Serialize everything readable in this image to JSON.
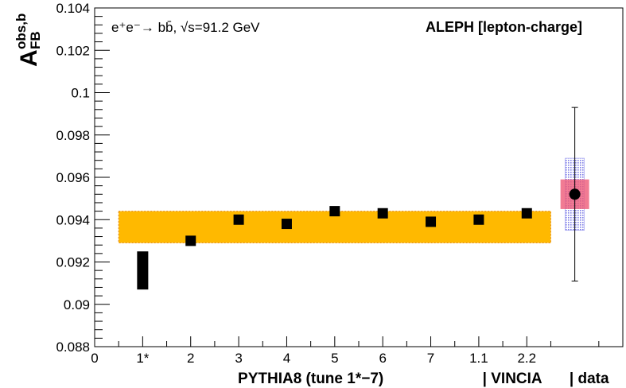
{
  "chart_data": {
    "type": "scatter",
    "title": "",
    "process_label": "e⁺e⁻→ bb̄, √s=91.2 GeV",
    "experiment_label": "ALEPH [lepton-charge]",
    "ylabel": "A",
    "ylabel_sup": "obs,b",
    "ylabel_sub": "FB",
    "ylim": [
      0.088,
      0.104
    ],
    "xlim": [
      0,
      11
    ],
    "yticks": [
      "0.088",
      "0.09",
      "0.092",
      "0.094",
      "0.096",
      "0.098",
      "0.1",
      "0.102",
      "0.104"
    ],
    "ytick_values": [
      0.088,
      0.09,
      0.092,
      0.094,
      0.096,
      0.098,
      0.1,
      0.102,
      0.104
    ],
    "xticks": [
      {
        "x": 0,
        "label": "0"
      },
      {
        "x": 1,
        "label": "1*"
      },
      {
        "x": 2,
        "label": "2"
      },
      {
        "x": 3,
        "label": "3"
      },
      {
        "x": 4,
        "label": "4"
      },
      {
        "x": 5,
        "label": "5"
      },
      {
        "x": 6,
        "label": "6"
      },
      {
        "x": 7,
        "label": "7"
      },
      {
        "x": 8,
        "label": "1.1"
      },
      {
        "x": 9,
        "label": "2.2"
      }
    ],
    "xlabel_groups": [
      {
        "label": "PYTHIA8 (tune 1*−7)",
        "x": 4.5
      },
      {
        "label": "| VINCIA",
        "x": 8.7
      },
      {
        "label": "| data",
        "x": 10.3
      }
    ],
    "band": {
      "x_from": 0.5,
      "x_to": 9.5,
      "y_low": 0.0929,
      "y_high": 0.0944,
      "color": "#ffb900"
    },
    "series": [
      {
        "points": [
          {
            "x": 1,
            "y_low": 0.0907,
            "y_high": 0.0925
          },
          {
            "x": 2,
            "y": 0.093
          },
          {
            "x": 3,
            "y": 0.094
          },
          {
            "x": 4,
            "y": 0.0938
          },
          {
            "x": 5,
            "y": 0.0944
          },
          {
            "x": 6,
            "y": 0.0943
          },
          {
            "x": 7,
            "y": 0.0939
          },
          {
            "x": 8,
            "y": 0.094
          },
          {
            "x": 9,
            "y": 0.0943
          }
        ],
        "color": "#000000"
      }
    ],
    "data_point": {
      "x": 10,
      "y": 0.0952,
      "stat_low": 0.0945,
      "stat_high": 0.0959,
      "syst_low": 0.0935,
      "syst_high": 0.0969,
      "total_low": 0.0911,
      "total_high": 0.0993,
      "stat_color": "#ee5a78",
      "syst_color": "#8c8cee"
    }
  }
}
